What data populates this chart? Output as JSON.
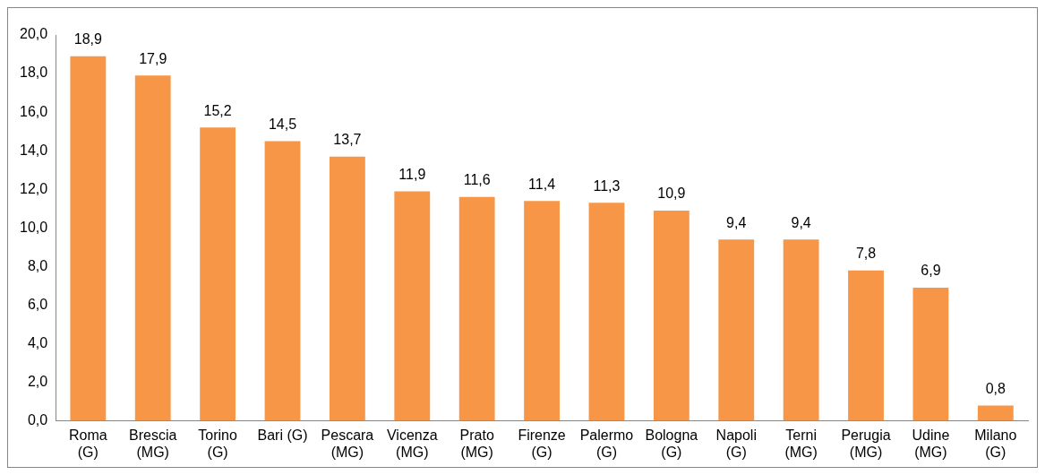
{
  "chart_data": {
    "type": "bar",
    "categories": [
      "Roma\n(G)",
      "Brescia\n(MG)",
      "Torino\n(G)",
      "Bari (G)",
      "Pescara\n(MG)",
      "Vicenza\n(MG)",
      "Prato\n(MG)",
      "Firenze\n(G)",
      "Palermo\n(G)",
      "Bologna\n(G)",
      "Napoli\n(G)",
      "Terni\n(MG)",
      "Perugia\n(MG)",
      "Udine\n(MG)",
      "Milano\n(G)"
    ],
    "values": [
      18.9,
      17.9,
      15.2,
      14.5,
      13.7,
      11.9,
      11.6,
      11.4,
      11.3,
      10.9,
      9.4,
      9.4,
      7.8,
      6.9,
      0.8
    ],
    "value_labels": [
      "18,9",
      "17,9",
      "15,2",
      "14,5",
      "13,7",
      "11,9",
      "11,6",
      "11,4",
      "11,3",
      "10,9",
      "9,4",
      "9,4",
      "7,8",
      "6,9",
      "0,8"
    ],
    "color": "#f79646",
    "ylim": [
      0,
      20
    ],
    "yticks": [
      {
        "value": 0,
        "label": "0,0"
      },
      {
        "value": 2,
        "label": "2,0"
      },
      {
        "value": 4,
        "label": "4,0"
      },
      {
        "value": 6,
        "label": "6,0"
      },
      {
        "value": 8,
        "label": "8,0"
      },
      {
        "value": 10,
        "label": "10,0"
      },
      {
        "value": 12,
        "label": "12,0"
      },
      {
        "value": 14,
        "label": "14,0"
      },
      {
        "value": 16,
        "label": "16,0"
      },
      {
        "value": 18,
        "label": "18,0"
      },
      {
        "value": 20,
        "label": "20,0"
      }
    ]
  }
}
